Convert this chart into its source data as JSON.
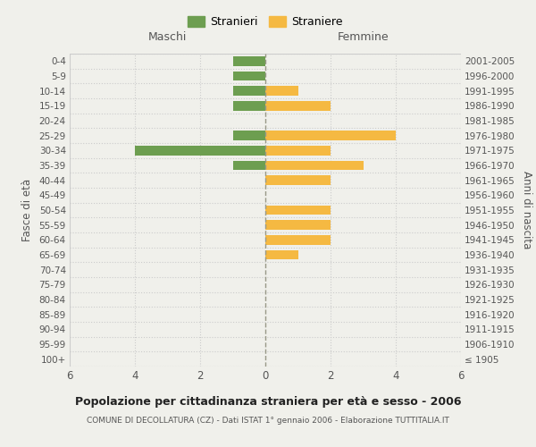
{
  "age_groups": [
    "100+",
    "95-99",
    "90-94",
    "85-89",
    "80-84",
    "75-79",
    "70-74",
    "65-69",
    "60-64",
    "55-59",
    "50-54",
    "45-49",
    "40-44",
    "35-39",
    "30-34",
    "25-29",
    "20-24",
    "15-19",
    "10-14",
    "5-9",
    "0-4"
  ],
  "birth_years": [
    "≤ 1905",
    "1906-1910",
    "1911-1915",
    "1916-1920",
    "1921-1925",
    "1926-1930",
    "1931-1935",
    "1936-1940",
    "1941-1945",
    "1946-1950",
    "1951-1955",
    "1956-1960",
    "1961-1965",
    "1966-1970",
    "1971-1975",
    "1976-1980",
    "1981-1985",
    "1986-1990",
    "1991-1995",
    "1996-2000",
    "2001-2005"
  ],
  "males": [
    0,
    0,
    0,
    0,
    0,
    0,
    0,
    0,
    0,
    0,
    0,
    0,
    0,
    1,
    4,
    1,
    0,
    1,
    1,
    1,
    1
  ],
  "females": [
    0,
    0,
    0,
    0,
    0,
    0,
    0,
    1,
    2,
    2,
    2,
    0,
    2,
    3,
    2,
    4,
    0,
    2,
    1,
    0,
    0
  ],
  "male_color": "#6d9e50",
  "female_color": "#f5b942",
  "background_color": "#f0f0eb",
  "grid_color": "#cccccc",
  "center_line_color": "#999988",
  "xlim": 6,
  "title": "Popolazione per cittadinanza straniera per età e sesso - 2006",
  "subtitle": "COMUNE DI DECOLLATURA (CZ) - Dati ISTAT 1° gennaio 2006 - Elaborazione TUTTITALIA.IT",
  "left_header": "Maschi",
  "right_header": "Femmine",
  "left_ylabel": "Fasce di età",
  "right_ylabel": "Anni di nascita",
  "legend_male": "Stranieri",
  "legend_female": "Straniere"
}
